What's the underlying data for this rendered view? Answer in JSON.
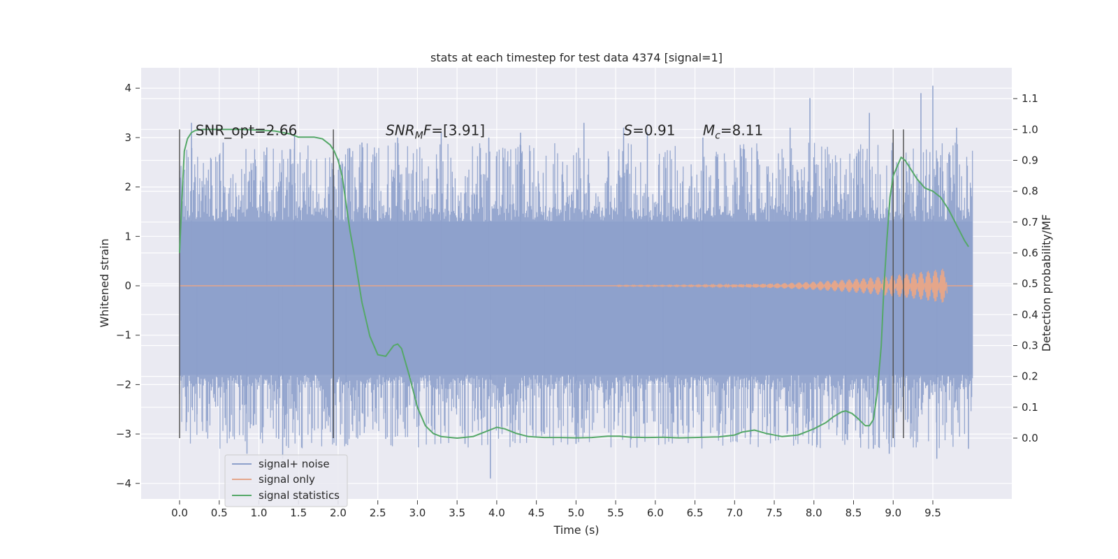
{
  "chart_data": {
    "type": "line",
    "title": "stats at each timestep for test data 4374 [signal=1]",
    "xlabel": "Time (s)",
    "ylabel": "Whitened strain",
    "y2label": "Detection probability/MF",
    "xlim": [
      -0.5,
      10.5
    ],
    "ylim": [
      -4.3,
      4.4
    ],
    "y2lim": [
      -0.2,
      1.2
    ],
    "xticks": [
      0.0,
      0.5,
      1.0,
      1.5,
      2.0,
      2.5,
      3.0,
      3.5,
      4.0,
      4.5,
      5.0,
      5.5,
      6.0,
      6.5,
      7.0,
      7.5,
      8.0,
      8.5,
      9.0,
      9.5
    ],
    "xtick_labels": [
      "0.0",
      "0.5",
      "1.0",
      "1.5",
      "2.0",
      "2.5",
      "3.0",
      "3.5",
      "4.0",
      "4.5",
      "5.0",
      "5.5",
      "6.0",
      "6.5",
      "7.0",
      "7.5",
      "8.0",
      "8.5",
      "9.0",
      "9.5"
    ],
    "yticks": [
      4,
      3,
      2,
      1,
      0,
      -1,
      -2,
      -3,
      -4
    ],
    "ytick_labels": [
      "4",
      "3",
      "2",
      "1",
      "0",
      "−1",
      "−2",
      "−3",
      "−4"
    ],
    "y2ticks": [
      1.1,
      1.0,
      0.9,
      0.8,
      0.7,
      0.6,
      0.5,
      0.4,
      0.3,
      0.2,
      0.1,
      0.0
    ],
    "y2tick_labels": [
      "1.1",
      "1.0",
      "0.9",
      "0.8",
      "0.7",
      "0.6",
      "0.5",
      "0.4",
      "0.3",
      "0.2",
      "0.1",
      "0.0"
    ],
    "grid": true,
    "legend_position": "lower-left",
    "background_color": "#EAEAF2",
    "series": [
      {
        "name": "signal+ noise",
        "color": "#8da0cb",
        "axis": "left",
        "note_x_range": [
          0.0,
          10.0
        ],
        "envelope_typical": [
          -1.8,
          1.3
        ],
        "peak_samples": [
          {
            "x": 0.15,
            "y": 3.3
          },
          {
            "x": 0.22,
            "y": -2.6
          },
          {
            "x": 0.55,
            "y": 2.9
          },
          {
            "x": 0.85,
            "y": -3.4
          },
          {
            "x": 1.1,
            "y": 2.8
          },
          {
            "x": 1.25,
            "y": -3.1
          },
          {
            "x": 1.3,
            "y": -3.5
          },
          {
            "x": 1.45,
            "y": 3.1
          },
          {
            "x": 2.1,
            "y": -3.2
          },
          {
            "x": 2.3,
            "y": 2.9
          },
          {
            "x": 2.6,
            "y": -3.1
          },
          {
            "x": 2.75,
            "y": 3.0
          },
          {
            "x": 3.3,
            "y": 3.1
          },
          {
            "x": 3.6,
            "y": -3.2
          },
          {
            "x": 3.9,
            "y": 3.0
          },
          {
            "x": 3.92,
            "y": -3.9
          },
          {
            "x": 4.3,
            "y": 3.1
          },
          {
            "x": 4.6,
            "y": -3.0
          },
          {
            "x": 5.1,
            "y": 3.3
          },
          {
            "x": 5.0,
            "y": -3.2
          },
          {
            "x": 5.6,
            "y": 3.2
          },
          {
            "x": 5.9,
            "y": 3.1
          },
          {
            "x": 6.1,
            "y": -3.0
          },
          {
            "x": 6.6,
            "y": 3.0
          },
          {
            "x": 7.2,
            "y": -3.0
          },
          {
            "x": 7.7,
            "y": 3.2
          },
          {
            "x": 7.95,
            "y": 3.8
          },
          {
            "x": 8.4,
            "y": -3.0
          },
          {
            "x": 8.7,
            "y": 3.5
          },
          {
            "x": 8.75,
            "y": -3.3
          },
          {
            "x": 8.95,
            "y": -3.4
          },
          {
            "x": 9.35,
            "y": 3.9
          },
          {
            "x": 9.5,
            "y": 4.05
          },
          {
            "x": 9.55,
            "y": -3.5
          },
          {
            "x": 9.8,
            "y": 3.2
          },
          {
            "x": 9.95,
            "y": -3.3
          }
        ]
      },
      {
        "name": "signal only",
        "color": "#e5a68a",
        "axis": "left",
        "chirp_start_x": 5.5,
        "chirp_end_x": 9.68,
        "peak_amplitude": 0.35
      },
      {
        "name": "signal statistics",
        "color": "#55a868",
        "axis": "right",
        "x": [
          0.0,
          0.03,
          0.06,
          0.1,
          0.15,
          0.2,
          0.3,
          0.5,
          0.8,
          1.0,
          1.2,
          1.4,
          1.5,
          1.6,
          1.7,
          1.8,
          1.9,
          1.95,
          2.0,
          2.05,
          2.1,
          2.15,
          2.2,
          2.3,
          2.4,
          2.5,
          2.6,
          2.7,
          2.75,
          2.8,
          2.9,
          3.0,
          3.1,
          3.2,
          3.3,
          3.5,
          3.7,
          3.85,
          4.0,
          4.1,
          4.25,
          4.4,
          4.6,
          4.8,
          5.0,
          5.2,
          5.4,
          5.55,
          5.7,
          5.9,
          6.1,
          6.3,
          6.5,
          6.8,
          7.0,
          7.1,
          7.25,
          7.4,
          7.6,
          7.8,
          8.0,
          8.15,
          8.25,
          8.35,
          8.4,
          8.48,
          8.55,
          8.65,
          8.7,
          8.75,
          8.8,
          8.85,
          8.88,
          8.92,
          8.96,
          9.0,
          9.05,
          9.1,
          9.15,
          9.2,
          9.3,
          9.4,
          9.5,
          9.6,
          9.7,
          9.8,
          9.9,
          9.95
        ],
        "values": [
          0.6,
          0.78,
          0.93,
          0.97,
          0.99,
          0.997,
          1.0,
          1.0,
          1.0,
          0.998,
          0.995,
          0.985,
          0.975,
          0.975,
          0.975,
          0.97,
          0.95,
          0.93,
          0.9,
          0.85,
          0.76,
          0.67,
          0.6,
          0.44,
          0.33,
          0.27,
          0.265,
          0.3,
          0.305,
          0.29,
          0.2,
          0.1,
          0.04,
          0.015,
          0.005,
          0.0,
          0.005,
          0.02,
          0.035,
          0.03,
          0.015,
          0.005,
          0.002,
          0.002,
          0.001,
          0.002,
          0.006,
          0.006,
          0.003,
          0.002,
          0.003,
          0.001,
          0.002,
          0.004,
          0.01,
          0.02,
          0.026,
          0.015,
          0.005,
          0.01,
          0.03,
          0.05,
          0.07,
          0.085,
          0.088,
          0.08,
          0.065,
          0.04,
          0.04,
          0.06,
          0.15,
          0.3,
          0.47,
          0.64,
          0.78,
          0.85,
          0.88,
          0.91,
          0.9,
          0.88,
          0.84,
          0.81,
          0.8,
          0.78,
          0.74,
          0.69,
          0.64,
          0.62
        ]
      }
    ],
    "vertical_markers_x": [
      0.0,
      1.94,
      9.0,
      9.13
    ],
    "annotations": [
      {
        "id": "snr-opt",
        "text": "SNR_opt=2.66",
        "x": 0.2,
        "y": 3.15
      },
      {
        "id": "snr-mf",
        "text": "SNR_MF=[3.91]",
        "base": "SNR",
        "sub": "M",
        "tail": "F=[3.91]",
        "x": 2.6,
        "y": 3.15
      },
      {
        "id": "s-value",
        "text": "S=0.91",
        "base": "S",
        "tail": "=0.91",
        "x": 5.6,
        "y": 3.15
      },
      {
        "id": "mc-value",
        "text": "Mc=8.11",
        "base": "M",
        "sub": "c",
        "tail": "=8.11",
        "x": 6.6,
        "y": 3.15
      }
    ]
  }
}
